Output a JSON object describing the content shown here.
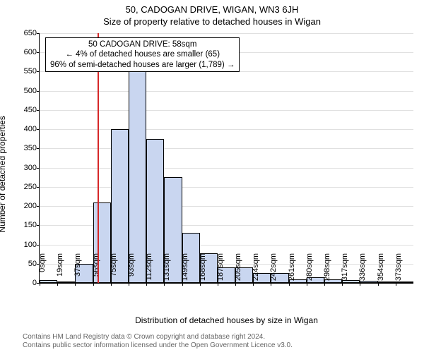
{
  "page_title": "50, CADOGAN DRIVE, WIGAN, WN3 6JH",
  "subtitle": "Size of property relative to detached houses in Wigan",
  "ylabel": "Number of detached properties",
  "xlabel": "Distribution of detached houses by size in Wigan",
  "chart": {
    "type": "histogram",
    "ylim": [
      0,
      650
    ],
    "ytick_step": 50,
    "xtick_step_sqm": 18.65,
    "xtick_count": 21,
    "xtick_unit": "sqm",
    "bar_fill": "#c9d6f0",
    "bar_border": "#000000",
    "grid_color": "#e0e0e0",
    "marker_color": "#d62728",
    "marker_sqm": 58,
    "bars_heights": [
      8,
      2,
      50,
      210,
      400,
      550,
      375,
      275,
      130,
      78,
      40,
      40,
      25,
      25,
      10,
      15,
      10,
      8,
      5,
      3,
      2
    ]
  },
  "info_box": {
    "line1": "50 CADOGAN DRIVE: 58sqm",
    "line2": "← 4% of detached houses are smaller (65)",
    "line3": "96% of semi-detached houses are larger (1,789) →"
  },
  "attribution": {
    "line1": "Contains HM Land Registry data © Crown copyright and database right 2024.",
    "line2": "Contains public sector information licensed under the Open Government Licence v3.0."
  }
}
